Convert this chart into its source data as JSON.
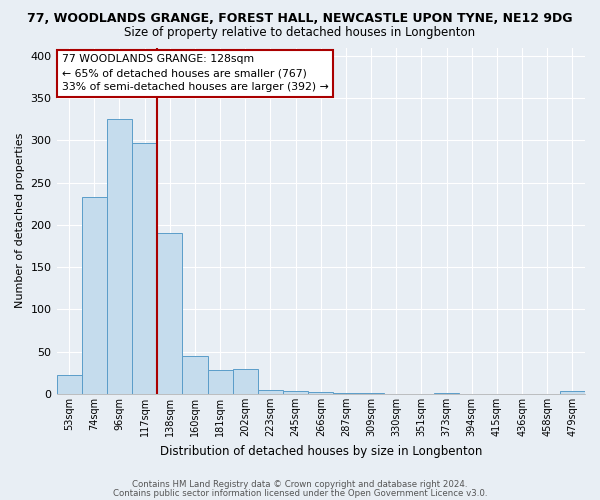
{
  "title": "77, WOODLANDS GRANGE, FOREST HALL, NEWCASTLE UPON TYNE, NE12 9DG",
  "subtitle": "Size of property relative to detached houses in Longbenton",
  "xlabel": "Distribution of detached houses by size in Longbenton",
  "ylabel": "Number of detached properties",
  "bin_labels": [
    "53sqm",
    "74sqm",
    "96sqm",
    "117sqm",
    "138sqm",
    "160sqm",
    "181sqm",
    "202sqm",
    "223sqm",
    "245sqm",
    "266sqm",
    "287sqm",
    "309sqm",
    "330sqm",
    "351sqm",
    "373sqm",
    "394sqm",
    "415sqm",
    "436sqm",
    "458sqm",
    "479sqm"
  ],
  "bar_heights": [
    23,
    233,
    325,
    297,
    190,
    45,
    29,
    30,
    5,
    4,
    2,
    1,
    1,
    0,
    0,
    1,
    0,
    0,
    0,
    0,
    3
  ],
  "bar_color": "#c5dced",
  "bar_edge_color": "#5b9dc9",
  "marker_line_color": "#aa0000",
  "annotation_line1": "77 WOODLANDS GRANGE: 128sqm",
  "annotation_line2": "← 65% of detached houses are smaller (767)",
  "annotation_line3": "33% of semi-detached houses are larger (392) →",
  "annotation_box_color": "#ffffff",
  "annotation_box_edge": "#aa0000",
  "ylim": [
    0,
    410
  ],
  "yticks": [
    0,
    50,
    100,
    150,
    200,
    250,
    300,
    350,
    400
  ],
  "footer1": "Contains HM Land Registry data © Crown copyright and database right 2024.",
  "footer2": "Contains public sector information licensed under the Open Government Licence v3.0.",
  "bg_color": "#e8eef4",
  "grid_color": "#ffffff",
  "title_fontsize": 9,
  "subtitle_fontsize": 8.5
}
